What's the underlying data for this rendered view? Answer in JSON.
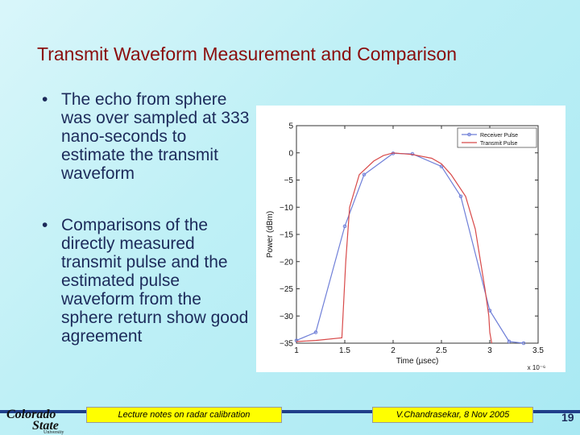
{
  "slide": {
    "title": "Transmit Waveform Measurement and Comparison",
    "bullets": [
      "The echo from sphere was over sampled at 333 nano-seconds to estimate  the transmit waveform",
      "Comparisons of the directly measured transmit pulse and the estimated pulse waveform from the sphere return show good agreement"
    ],
    "bullet_symbol": "•",
    "page_number": "19"
  },
  "footer": {
    "left_note": "Lecture notes on radar calibration",
    "right_note": "V.Chandrasekar, 8 Nov 2005"
  },
  "logo": {
    "line1": "Colorado",
    "line2": "State",
    "line3": "University"
  },
  "colors": {
    "title": "#8a0d0d",
    "text": "#1c2a5a",
    "footer_box": "#ffff00",
    "receiver_series": "#6f7fd8",
    "transmit_series": "#d84a4a"
  },
  "chart_data": {
    "type": "line",
    "title": "",
    "xlabel": "Time (µsec)",
    "x_multiplier": "x 10⁻⁶",
    "ylabel": "Power (dBm)",
    "xlim": [
      1,
      3.5
    ],
    "ylim": [
      -35,
      5
    ],
    "xticks": [
      "1",
      "1.5",
      "2",
      "2.5",
      "3",
      "3.5"
    ],
    "yticks": [
      "5",
      "0",
      "−5",
      "−10",
      "−15",
      "−20",
      "−25",
      "−30",
      "−35"
    ],
    "legend_position": "top-right",
    "grid": false,
    "series": [
      {
        "name": "Receiver Pulse",
        "style": "line-markers",
        "x": [
          1.0,
          1.2,
          1.5,
          1.7,
          2.0,
          2.2,
          2.5,
          2.7,
          3.0,
          3.2,
          3.35
        ],
        "y": [
          -34.5,
          -33.0,
          -13.5,
          -4.0,
          -0.1,
          -0.2,
          -2.5,
          -8.0,
          -29.0,
          -34.7,
          -35.0
        ]
      },
      {
        "name": "Transmit Pulse",
        "style": "line",
        "x": [
          1.0,
          1.2,
          1.47,
          1.51,
          1.55,
          1.65,
          1.8,
          1.9,
          2.0,
          2.2,
          2.4,
          2.5,
          2.6,
          2.75,
          2.85,
          2.95,
          2.99,
          3.0,
          3.02
        ],
        "y": [
          -34.7,
          -34.5,
          -34.0,
          -20.0,
          -10.0,
          -4.0,
          -1.5,
          -0.5,
          0.0,
          -0.3,
          -1.0,
          -2.0,
          -4.0,
          -8.0,
          -14.0,
          -25.0,
          -30.0,
          -33.0,
          -35.0
        ]
      }
    ]
  }
}
